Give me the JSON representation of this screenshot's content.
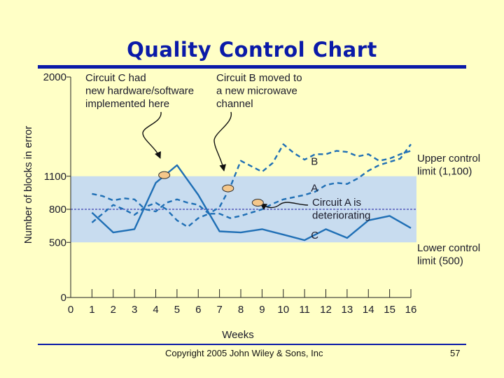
{
  "slide": {
    "title": "Quality Control Chart",
    "copyright": "Copyright 2005 John Wiley & Sons, Inc",
    "page_number": "57"
  },
  "colors": {
    "title": "#0a1aa8",
    "series": "#1f6fb5",
    "band": "#c8dcef",
    "marker": "#f5c78a",
    "mean_line": "#1a1aa0"
  },
  "chart_data": {
    "type": "line",
    "title": "",
    "xlabel": "Weeks",
    "ylabel": "Number of blocks in error",
    "xlim": [
      0,
      16
    ],
    "ylim": [
      0,
      2000
    ],
    "x_ticks": [
      "0",
      "1",
      "2",
      "3",
      "4",
      "5",
      "6",
      "7",
      "8",
      "9",
      "10",
      "11",
      "12",
      "13",
      "14",
      "15",
      "16"
    ],
    "y_ticks": [
      {
        "value": 0,
        "label": "0"
      },
      {
        "value": 500,
        "label": "500"
      },
      {
        "value": 800,
        "label": "800"
      },
      {
        "value": 1100,
        "label": "1100"
      },
      {
        "value": 2000,
        "label": "2000"
      }
    ],
    "control_limits": {
      "upper": 1100,
      "lower": 500,
      "mean": 800
    },
    "series": [
      {
        "name": "A",
        "style": "dashed",
        "x": [
          1,
          1.5,
          2,
          2.5,
          3,
          3.5,
          4,
          4.5,
          5,
          5.5,
          6,
          6.5,
          7,
          7.5,
          8,
          8.5,
          9,
          9.5,
          10,
          10.5,
          11,
          11.5,
          12,
          12.5,
          13,
          13.5,
          14,
          14.5,
          15,
          15.5,
          16
        ],
        "values": [
          680,
          760,
          840,
          800,
          750,
          820,
          860,
          800,
          700,
          640,
          720,
          760,
          760,
          720,
          740,
          770,
          800,
          850,
          890,
          910,
          930,
          960,
          1020,
          1040,
          1030,
          1080,
          1150,
          1200,
          1230,
          1260,
          1390
        ]
      },
      {
        "name": "B",
        "style": "dashed",
        "x": [
          1,
          1.5,
          2,
          2.5,
          3,
          3.5,
          4,
          4.5,
          5,
          5.5,
          6,
          6.5,
          7,
          7.5,
          8,
          8.5,
          9,
          9.5,
          10,
          10.5,
          11,
          11.5,
          12,
          12.5,
          13,
          13.5,
          14,
          14.5,
          15,
          15.5,
          16
        ],
        "values": [
          940,
          920,
          880,
          900,
          890,
          800,
          780,
          860,
          890,
          860,
          840,
          760,
          820,
          1000,
          1240,
          1190,
          1140,
          1220,
          1390,
          1310,
          1250,
          1300,
          1300,
          1330,
          1320,
          1280,
          1300,
          1240,
          1260,
          1300,
          1330
        ]
      },
      {
        "name": "C",
        "style": "solid",
        "x": [
          1,
          2,
          3,
          4,
          5,
          6,
          7,
          8,
          9,
          10,
          11,
          12,
          13,
          14,
          15,
          16
        ],
        "values": [
          770,
          590,
          620,
          1040,
          1200,
          930,
          600,
          590,
          620,
          570,
          520,
          620,
          540,
          700,
          740,
          630
        ]
      }
    ],
    "markers": [
      {
        "x": 4.4,
        "y": 1110
      },
      {
        "x": 7.4,
        "y": 990
      },
      {
        "x": 8.8,
        "y": 860
      }
    ],
    "series_labels": [
      {
        "text": "B",
        "x": 11.3,
        "y": 1240
      },
      {
        "text": "A",
        "x": 11.3,
        "y": 1000
      },
      {
        "text": "C",
        "x": 11.3,
        "y": 570
      }
    ],
    "annotations": [
      {
        "lines": [
          "Circuit C had",
          "new hardware/software",
          "implemented here"
        ],
        "anchor": "top-left"
      },
      {
        "lines": [
          "Circuit B moved to",
          "a new microwave",
          "channel"
        ],
        "anchor": "top-middle"
      },
      {
        "lines": [
          "Circuit A is",
          "deteriorating"
        ],
        "anchor": "middle"
      }
    ],
    "limit_labels": [
      {
        "lines": [
          "Upper control",
          "limit (1,100)"
        ]
      },
      {
        "lines": [
          "Lower control",
          "limit (500)"
        ]
      }
    ]
  }
}
